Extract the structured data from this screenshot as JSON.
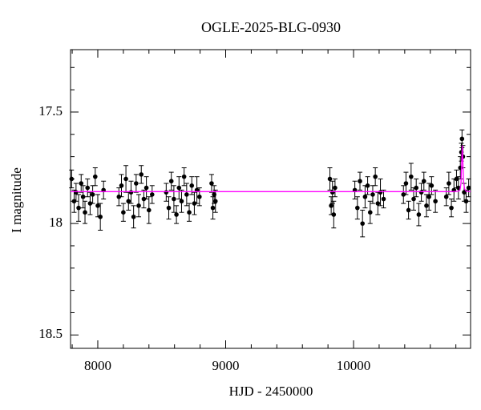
{
  "chart_data": {
    "type": "scatter",
    "title": "OGLE-2025-BLG-0930",
    "xlabel": "HJD - 2450000",
    "ylabel": "I magnitude",
    "xlim": [
      7787,
      10915
    ],
    "ylim": [
      18.56,
      17.22
    ],
    "y_inverted": true,
    "xticks": [
      8000,
      9000,
      10000
    ],
    "yticks": [
      17.5,
      18,
      18.5
    ],
    "xminorticks": [
      7800,
      8200,
      8400,
      8600,
      8800,
      9200,
      9400,
      9600,
      9800,
      10200,
      10400,
      10600,
      10800
    ],
    "yminorticks": [
      17.3,
      17.4,
      17.6,
      17.7,
      17.8,
      17.9,
      18.1,
      18.2,
      18.3,
      18.4
    ],
    "series": [
      {
        "type": "errorbar",
        "color": "#000000",
        "x": [
          7795,
          7815,
          7830,
          7850,
          7870,
          7885,
          7900,
          7920,
          7940,
          7960,
          7980,
          8000,
          8020,
          8045,
          8165,
          8185,
          8200,
          8220,
          8240,
          8260,
          8280,
          8300,
          8320,
          8340,
          8360,
          8380,
          8400,
          8425,
          8535,
          8555,
          8575,
          8595,
          8615,
          8635,
          8655,
          8675,
          8695,
          8715,
          8735,
          8755,
          8775,
          8795,
          8890,
          8900,
          8910,
          8920,
          9815,
          9825,
          9835,
          9845,
          9855,
          10010,
          10030,
          10050,
          10070,
          10090,
          10110,
          10130,
          10150,
          10170,
          10190,
          10210,
          10235,
          10390,
          10410,
          10430,
          10450,
          10470,
          10490,
          10510,
          10530,
          10550,
          10570,
          10590,
          10610,
          10640,
          10725,
          10745,
          10765,
          10785,
          10805,
          10820,
          10835,
          10843,
          10848,
          10855,
          10865,
          10880,
          10900
        ],
        "values": [
          17.8,
          17.9,
          17.86,
          17.93,
          17.82,
          17.88,
          17.95,
          17.84,
          17.91,
          17.87,
          17.79,
          17.92,
          17.97,
          17.85,
          17.88,
          17.83,
          17.95,
          17.8,
          17.9,
          17.86,
          17.97,
          17.82,
          17.92,
          17.78,
          17.89,
          17.84,
          17.94,
          17.87,
          17.86,
          17.93,
          17.81,
          17.89,
          17.96,
          17.84,
          17.9,
          17.79,
          17.87,
          17.95,
          17.83,
          17.91,
          17.85,
          17.88,
          17.82,
          17.93,
          17.87,
          17.9,
          17.8,
          17.92,
          17.86,
          17.96,
          17.84,
          17.85,
          17.93,
          17.81,
          18.0,
          17.88,
          17.83,
          17.95,
          17.87,
          17.79,
          17.91,
          17.86,
          17.89,
          17.87,
          17.82,
          17.94,
          17.79,
          17.89,
          17.84,
          17.96,
          17.86,
          17.81,
          17.92,
          17.88,
          17.83,
          17.9,
          17.88,
          17.82,
          17.93,
          17.85,
          17.8,
          17.84,
          17.75,
          17.68,
          17.62,
          17.7,
          17.86,
          17.9,
          17.84
        ],
        "errors": [
          0.04,
          0.05,
          0.04,
          0.06,
          0.04,
          0.05,
          0.05,
          0.04,
          0.05,
          0.04,
          0.04,
          0.05,
          0.06,
          0.04,
          0.04,
          0.05,
          0.04,
          0.06,
          0.04,
          0.05,
          0.05,
          0.04,
          0.05,
          0.04,
          0.04,
          0.05,
          0.06,
          0.04,
          0.04,
          0.05,
          0.04,
          0.06,
          0.04,
          0.05,
          0.05,
          0.04,
          0.05,
          0.04,
          0.04,
          0.05,
          0.06,
          0.04,
          0.04,
          0.05,
          0.04,
          0.05,
          0.05,
          0.04,
          0.05,
          0.06,
          0.04,
          0.04,
          0.05,
          0.04,
          0.06,
          0.05,
          0.04,
          0.05,
          0.04,
          0.04,
          0.05,
          0.06,
          0.04,
          0.04,
          0.05,
          0.04,
          0.06,
          0.05,
          0.04,
          0.05,
          0.04,
          0.04,
          0.05,
          0.06,
          0.04,
          0.05,
          0.04,
          0.05,
          0.04,
          0.05,
          0.04,
          0.05,
          0.05,
          0.04,
          0.04,
          0.05,
          0.04,
          0.05,
          0.04
        ]
      },
      {
        "type": "line",
        "color": "#ff00ff",
        "x": [
          7787,
          10780,
          10820,
          10832,
          10840,
          10846,
          10850,
          10854,
          10860,
          10868,
          10880,
          10915
        ],
        "values": [
          17.857,
          17.857,
          17.855,
          17.85,
          17.82,
          17.72,
          17.65,
          17.71,
          17.81,
          17.845,
          17.855,
          17.857
        ]
      }
    ]
  }
}
